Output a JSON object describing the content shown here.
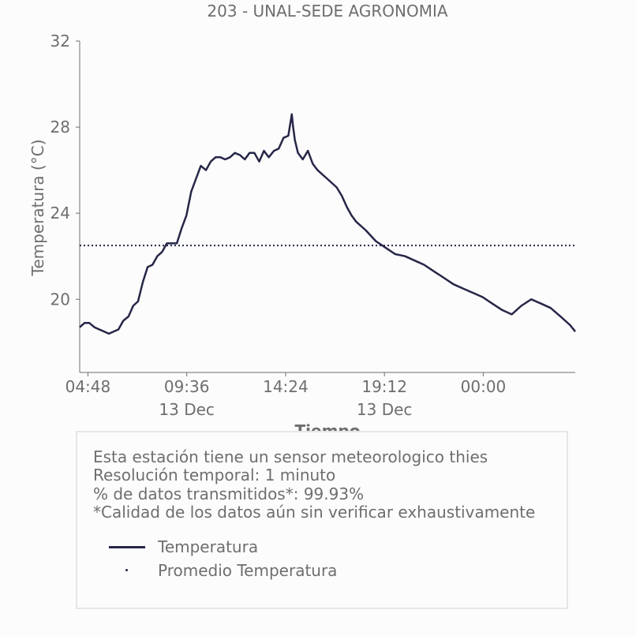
{
  "chart_data": {
    "type": "line",
    "title": "203 - UNAL-SEDE AGRONOMIA",
    "xlabel": "Tiempo",
    "ylabel": "Temperatura (°C)",
    "ylim": [
      16.6,
      32
    ],
    "yticks": [
      20,
      24,
      28,
      32
    ],
    "xlim": [
      "2023-12-13 04:24",
      "2023-12-14 04:28"
    ],
    "xticks": [
      {
        "time": "2023-12-13 04:48",
        "label": "04:48",
        "sublabel": ""
      },
      {
        "time": "2023-12-13 09:36",
        "label": "09:36",
        "sublabel": "13 Dec"
      },
      {
        "time": "2023-12-13 14:24",
        "label": "14:24",
        "sublabel": ""
      },
      {
        "time": "2023-12-13 19:12",
        "label": "19:12",
        "sublabel": "13 Dec"
      },
      {
        "time": "2023-12-14 00:00",
        "label": "00:00",
        "sublabel": ""
      }
    ],
    "grid": false,
    "colors": {
      "line": "#262648",
      "axis": "#6e6e6e",
      "text": "#6e6e6e"
    },
    "series": [
      {
        "name": "Temperatura",
        "style": "solid",
        "x": [
          "2023-12-13 04:24",
          "2023-12-13 04:38",
          "2023-12-13 04:52",
          "2023-12-13 05:07",
          "2023-12-13 05:21",
          "2023-12-13 05:49",
          "2023-12-13 06:17",
          "2023-12-13 06:31",
          "2023-12-13 06:46",
          "2023-12-13 07:00",
          "2023-12-13 07:14",
          "2023-12-13 07:28",
          "2023-12-13 07:42",
          "2023-12-13 07:56",
          "2023-12-13 08:10",
          "2023-12-13 08:24",
          "2023-12-13 08:38",
          "2023-12-13 08:53",
          "2023-12-13 09:07",
          "2023-12-13 09:21",
          "2023-12-13 09:35",
          "2023-12-13 09:49",
          "2023-12-13 10:03",
          "2023-12-13 10:17",
          "2023-12-13 10:32",
          "2023-12-13 10:46",
          "2023-12-13 11:00",
          "2023-12-13 11:14",
          "2023-12-13 11:28",
          "2023-12-13 11:42",
          "2023-12-13 11:56",
          "2023-12-13 12:11",
          "2023-12-13 12:25",
          "2023-12-13 12:39",
          "2023-12-13 12:53",
          "2023-12-13 13:07",
          "2023-12-13 13:21",
          "2023-12-13 13:35",
          "2023-12-13 13:50",
          "2023-12-13 14:04",
          "2023-12-13 14:18",
          "2023-12-13 14:32",
          "2023-12-13 14:42",
          "2023-12-13 14:46",
          "2023-12-13 14:51",
          "2023-12-13 15:00",
          "2023-12-13 15:14",
          "2023-12-13 15:29",
          "2023-12-13 15:43",
          "2023-12-13 15:57",
          "2023-12-13 16:11",
          "2023-12-13 16:25",
          "2023-12-13 16:39",
          "2023-12-13 16:53",
          "2023-12-13 17:08",
          "2023-12-13 17:22",
          "2023-12-13 17:36",
          "2023-12-13 17:50",
          "2023-12-13 18:18",
          "2023-12-13 18:47",
          "2023-12-13 19:15",
          "2023-12-13 19:43",
          "2023-12-13 20:12",
          "2023-12-13 20:40",
          "2023-12-13 21:08",
          "2023-12-13 21:36",
          "2023-12-13 22:05",
          "2023-12-13 22:33",
          "2023-12-13 23:01",
          "2023-12-13 23:30",
          "2023-12-13 23:58",
          "2023-12-14 00:26",
          "2023-12-14 00:55",
          "2023-12-14 01:23",
          "2023-12-14 01:51",
          "2023-12-14 02:20",
          "2023-12-14 02:48",
          "2023-12-14 03:16",
          "2023-12-14 03:45",
          "2023-12-14 04:13",
          "2023-12-14 04:28"
        ],
        "y": [
          18.7,
          18.9,
          18.9,
          18.7,
          18.6,
          18.4,
          18.6,
          19.0,
          19.2,
          19.7,
          19.9,
          20.8,
          21.5,
          21.6,
          22.0,
          22.2,
          22.6,
          22.6,
          22.6,
          23.3,
          23.9,
          25.0,
          25.6,
          26.2,
          26.0,
          26.4,
          26.6,
          26.6,
          26.5,
          26.6,
          26.8,
          26.7,
          26.5,
          26.8,
          26.8,
          26.4,
          26.9,
          26.6,
          26.9,
          27.0,
          27.5,
          27.6,
          28.6,
          28.0,
          27.4,
          26.8,
          26.5,
          26.9,
          26.3,
          26.0,
          25.8,
          25.6,
          25.4,
          25.2,
          24.8,
          24.3,
          23.9,
          23.6,
          23.2,
          22.7,
          22.4,
          22.1,
          22.0,
          21.8,
          21.6,
          21.3,
          21.0,
          20.7,
          20.5,
          20.3,
          20.1,
          19.8,
          19.5,
          19.3,
          19.7,
          20.0,
          19.8,
          19.6,
          19.2,
          18.8,
          18.5
        ]
      },
      {
        "name": "Promedio Temperatura",
        "style": "dotted",
        "x": [
          "2023-12-13 04:24",
          "2023-12-14 04:28"
        ],
        "y": [
          22.5,
          22.5
        ]
      }
    ]
  },
  "legend": {
    "info_lines": [
      "Esta estación tiene un sensor meteorologico thies",
      "Resolución temporal: 1 minuto",
      "% de datos transmitidos*: 99.93%",
      "*Calidad de los datos aún sin verificar exhaustivamente"
    ],
    "entries": [
      "Temperatura",
      "Promedio Temperatura"
    ]
  }
}
